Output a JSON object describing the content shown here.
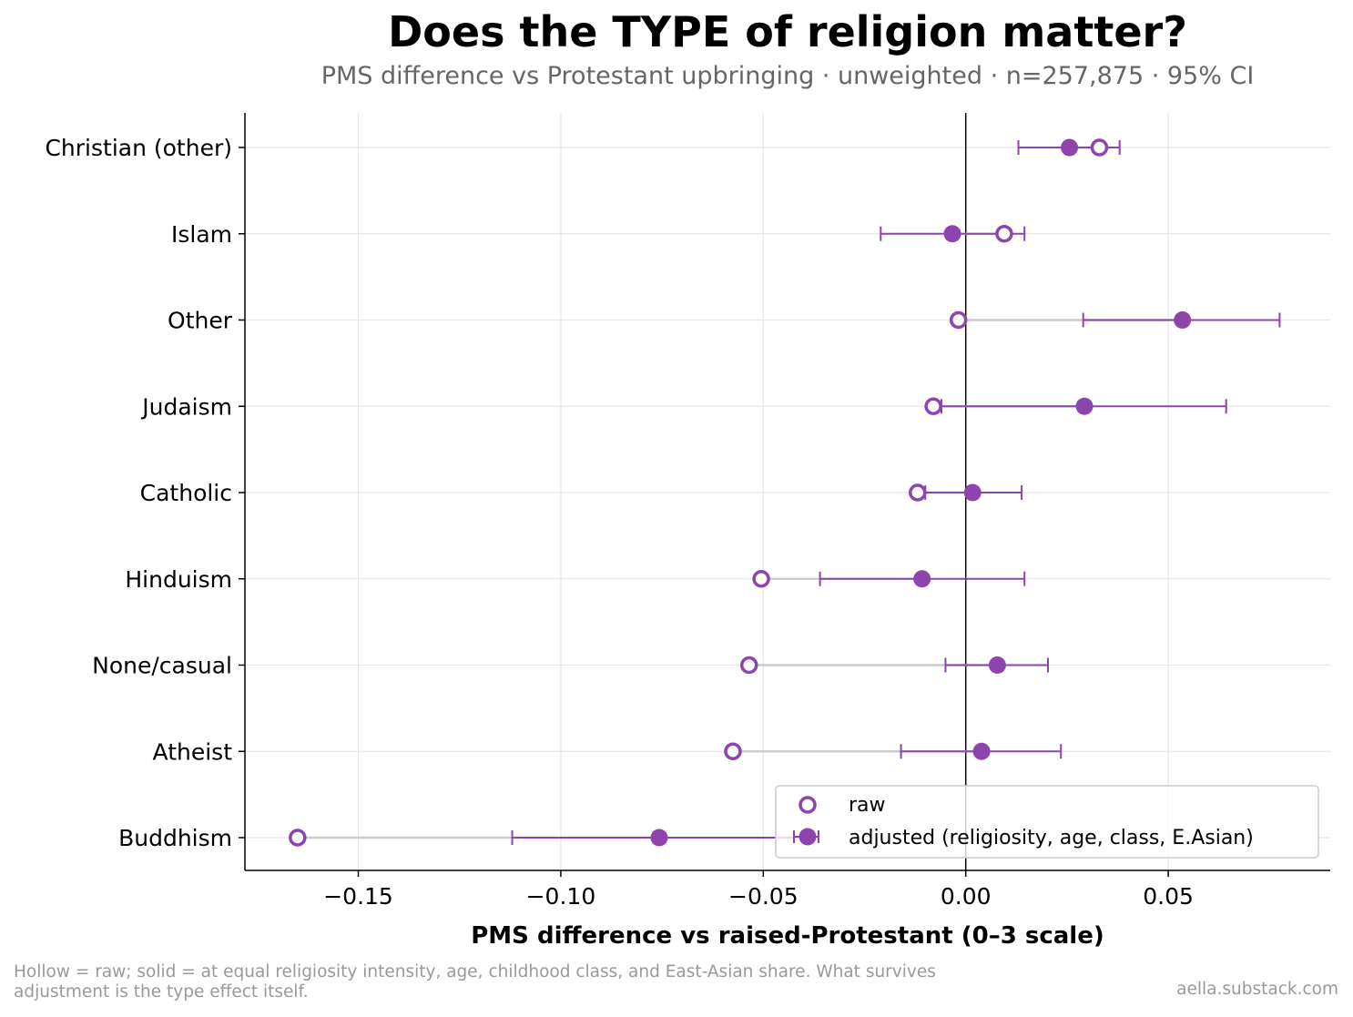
{
  "title": "Does the TYPE of religion matter?",
  "subtitle": "PMS difference vs Protestant upbringing · unweighted · n=257,875 · 95% CI",
  "footnote": "Hollow = raw; solid = at equal religiosity intensity, age, childhood class, and East-Asian share. What survives adjustment is the type effect itself.",
  "credit": "aella.substack.com",
  "colors": {
    "accent": "#8e44ad",
    "connector": "#cccccc",
    "grid": "#e6e6e6",
    "zero_line": "#000000"
  },
  "chart_data": {
    "type": "dot-range",
    "xlabel": "PMS difference vs raised-Protestant (0–3 scale)",
    "xlim": [
      -0.178,
      0.09
    ],
    "xticks": [
      -0.15,
      -0.1,
      -0.05,
      0.0,
      0.05
    ],
    "xtick_labels": [
      "−0.15",
      "−0.10",
      "−0.05",
      "0.00",
      "0.05"
    ],
    "grid": true,
    "legend_position": "lower-right",
    "legend": {
      "raw": "raw",
      "adjusted": "adjusted (religiosity, age, class, E.Asian)"
    },
    "categories": [
      "Christian (other)",
      "Islam",
      "Other",
      "Judaism",
      "Catholic",
      "Hinduism",
      "None/casual",
      "Atheist",
      "Buddhism"
    ],
    "series": [
      {
        "name": "raw",
        "marker": "hollow",
        "values": [
          0.033,
          0.0095,
          -0.0018,
          -0.008,
          -0.0119,
          -0.0505,
          -0.0535,
          -0.0575,
          -0.165
        ]
      },
      {
        "name": "adjusted (religiosity, age, class, E.Asian)",
        "marker": "solid",
        "values": [
          0.0256,
          -0.0033,
          0.0535,
          0.0293,
          0.0017,
          -0.0108,
          0.0078,
          0.0039,
          -0.0757
        ],
        "ci_low": [
          0.013,
          -0.021,
          0.029,
          -0.006,
          -0.01,
          -0.036,
          -0.005,
          -0.016,
          -0.112
        ],
        "ci_high": [
          0.038,
          0.0145,
          0.0775,
          0.0643,
          0.0138,
          0.0145,
          0.0203,
          0.0235,
          -0.0397
        ]
      }
    ]
  }
}
